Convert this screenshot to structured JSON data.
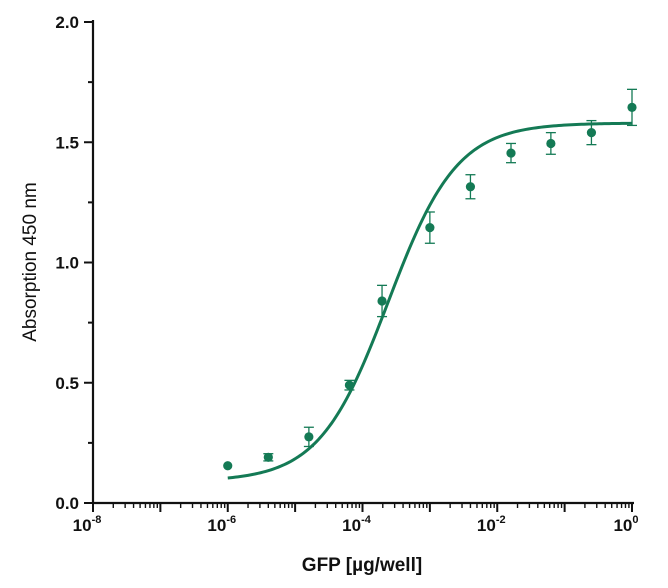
{
  "chart_data": {
    "type": "scatter",
    "title": "",
    "xlabel": "GFP [µg/well]",
    "ylabel": "Absorption 450 nm",
    "x_scale": "log10",
    "xlim": [
      1e-08,
      1
    ],
    "ylim": [
      0,
      2.0
    ],
    "x_ticks": [
      {
        "base": "10",
        "exp": "-8"
      },
      {
        "base": "10",
        "exp": "-6"
      },
      {
        "base": "10",
        "exp": "-4"
      },
      {
        "base": "10",
        "exp": "-2"
      },
      {
        "base": "10",
        "exp": "0"
      }
    ],
    "y_ticks": [
      "0.0",
      "0.5",
      "1.0",
      "1.5",
      "2.0"
    ],
    "grid": false,
    "color": "#147A55",
    "series": [
      {
        "type": "scatter",
        "points": [
          {
            "x": 1e-06,
            "y": 0.155,
            "err": 0.0
          },
          {
            "x": 4e-06,
            "y": 0.19,
            "err": 0.015
          },
          {
            "x": 1.6e-05,
            "y": 0.275,
            "err": 0.04
          },
          {
            "x": 6.4e-05,
            "y": 0.49,
            "err": 0.02
          },
          {
            "x": 0.000195,
            "y": 0.84,
            "err": 0.065
          },
          {
            "x": 0.001,
            "y": 1.145,
            "err": 0.065
          },
          {
            "x": 0.004,
            "y": 1.315,
            "err": 0.05
          },
          {
            "x": 0.016,
            "y": 1.455,
            "err": 0.04
          },
          {
            "x": 0.0625,
            "y": 1.495,
            "err": 0.045
          },
          {
            "x": 0.25,
            "y": 1.54,
            "err": 0.05
          },
          {
            "x": 1.0,
            "y": 1.645,
            "err": 0.075
          }
        ]
      },
      {
        "type": "line",
        "fit": "four-parameter logistic",
        "bottom": 0.09,
        "top": 1.58,
        "log_ec50": -3.62,
        "hill_slope": 0.85
      }
    ]
  }
}
